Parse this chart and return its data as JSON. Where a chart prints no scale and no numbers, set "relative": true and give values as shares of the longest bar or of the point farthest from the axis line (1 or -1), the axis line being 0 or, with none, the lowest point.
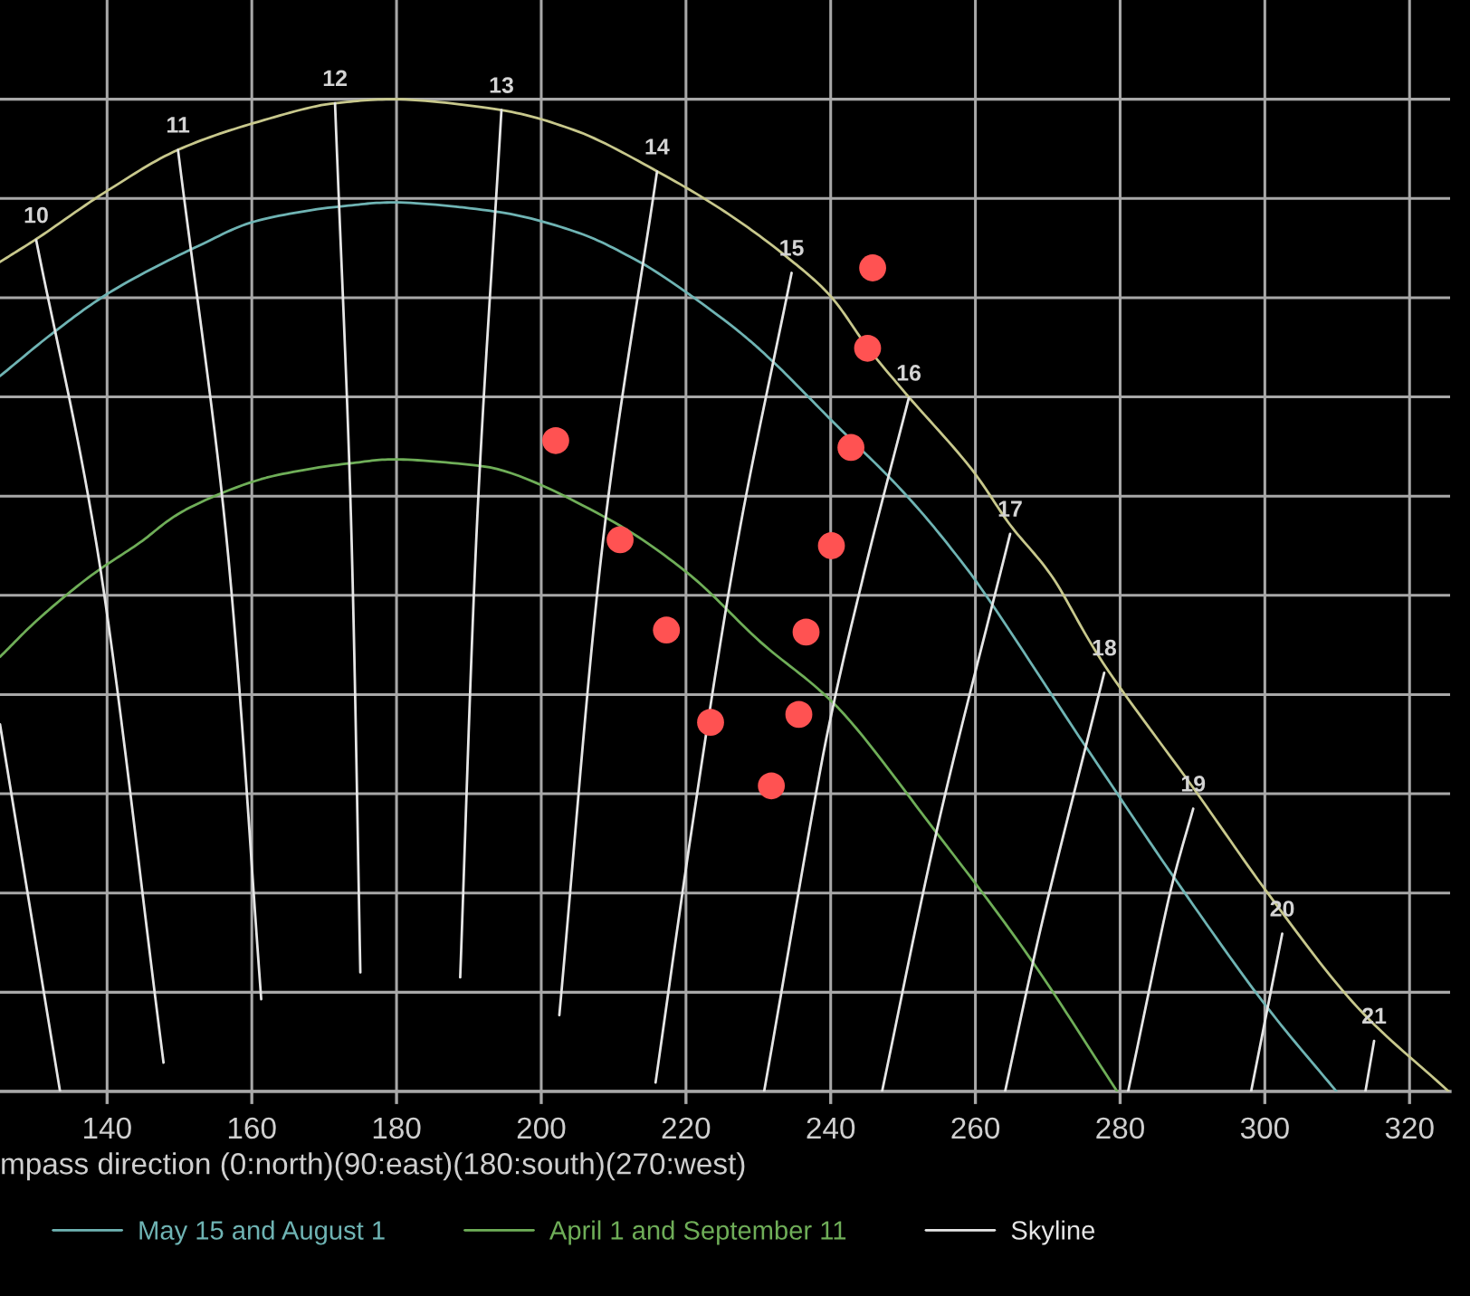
{
  "chart_data": {
    "type": "line",
    "relative": true,
    "xlabel": "mpass direction (0:north)(90:east)(180:south)(270:west)",
    "xlim": [
      125.2,
      325.6
    ],
    "xticks": [
      140,
      160,
      180,
      200,
      220,
      240,
      260,
      280,
      300,
      320
    ],
    "grid": true,
    "legend": "bottom",
    "marker": "none",
    "line_style": "solid",
    "series": [
      {
        "color": "#c8c88c",
        "x": [
          125.2,
          130.2,
          140.3,
          149.8,
          160.3,
          171.5,
          179.8,
          194.5,
          204.5,
          216.1,
          225.3,
          233.6,
          239.8,
          245.3,
          250.3,
          259.6,
          264.8,
          270.3,
          277.1,
          290.4,
          301.1,
          312.9,
          325.4
        ],
        "values": [
          0.836,
          0.859,
          0.909,
          0.949,
          0.976,
          0.996,
          1.0,
          0.989,
          0.969,
          0.927,
          0.887,
          0.843,
          0.803,
          0.748,
          0.704,
          0.626,
          0.571,
          0.522,
          0.438,
          0.303,
          0.193,
          0.084,
          0
        ]
      },
      {
        "name": "May 15 and August 1",
        "color": "#6fb4b4",
        "x": [
          125.2,
          132.8,
          140.3,
          152.0,
          161.0,
          172.3,
          179.8,
          193.5,
          204.5,
          213.6,
          227.8,
          232.1,
          240.3,
          250.3,
          258.6,
          275.3,
          287.8,
          300.4,
          309.9
        ],
        "values": [
          0.721,
          0.766,
          0.805,
          0.85,
          0.878,
          0.892,
          0.896,
          0.887,
          0.867,
          0.836,
          0.763,
          0.735,
          0.675,
          0.602,
          0.529,
          0.347,
          0.212,
          0.084,
          0
        ]
      },
      {
        "name": "April 1 and September 11",
        "color": "#6fae58",
        "x": [
          125.2,
          130.2,
          137.8,
          144.5,
          150.3,
          162.8,
          173.5,
          179.8,
          192.0,
          208.5,
          220.3,
          230.3,
          240.3,
          254.6,
          267.1,
          279.6
        ],
        "values": [
          0.438,
          0.474,
          0.52,
          0.553,
          0.584,
          0.62,
          0.633,
          0.637,
          0.63,
          0.58,
          0.522,
          0.453,
          0.392,
          0.261,
          0.139,
          0
        ]
      },
      {
        "name": "Skyline",
        "color": "#e6e6e6"
      },
      {
        "color": "#e6e6e6",
        "x": [
          125.2,
          133.5
        ],
        "values": [
          0.37,
          0
        ]
      },
      {
        "color": "#e6e6e6",
        "x": [
          130.2,
          138.5,
          147.8
        ],
        "values": [
          0.858,
          0.553,
          0.029
        ]
      },
      {
        "color": "#e6e6e6",
        "x": [
          149.8,
          156.8,
          161.3
        ],
        "values": [
          0.949,
          0.535,
          0.093
        ]
      },
      {
        "color": "#e6e6e6",
        "x": [
          171.5,
          173.8,
          175.0
        ],
        "values": [
          0.996,
          0.553,
          0.12
        ]
      },
      {
        "color": "#e6e6e6",
        "x": [
          194.5,
          191.0,
          188.8
        ],
        "values": [
          0.989,
          0.553,
          0.115
        ]
      },
      {
        "color": "#e6e6e6",
        "x": [
          216.0,
          208.5,
          202.5
        ],
        "values": [
          0.927,
          0.553,
          0.077
        ]
      },
      {
        "color": "#e6e6e6",
        "x": [
          234.6,
          227.1,
          221.1,
          215.8
        ],
        "values": [
          0.825,
          0.553,
          0.279,
          0.009
        ]
      },
      {
        "color": "#e6e6e6",
        "x": [
          250.8,
          244.6,
          239.8,
          230.8
        ],
        "values": [
          0.699,
          0.522,
          0.37,
          0
        ]
      },
      {
        "color": "#e6e6e6",
        "x": [
          264.8,
          254.6,
          247.1
        ],
        "values": [
          0.562,
          0.261,
          0
        ]
      },
      {
        "color": "#e6e6e6",
        "x": [
          277.8,
          268.6,
          264.1
        ],
        "values": [
          0.422,
          0.151,
          0
        ]
      },
      {
        "color": "#e6e6e6",
        "x": [
          290.1,
          287.3,
          281.1
        ],
        "values": [
          0.285,
          0.212,
          0
        ]
      },
      {
        "color": "#e6e6e6",
        "x": [
          302.4,
          298.1
        ],
        "values": [
          0.159,
          0
        ]
      },
      {
        "color": "#e6e6e6",
        "x": [
          315.1,
          313.9
        ],
        "values": [
          0.051,
          0
        ]
      },
      {
        "type": "scatter",
        "marker": "circle",
        "color": "#ff5252",
        "x": [
          245.8,
          245.1,
          242.8,
          240.1,
          236.6,
          235.6,
          231.8,
          202.0,
          210.9,
          217.3,
          223.4
        ],
        "values": [
          0.83,
          0.749,
          0.649,
          0.55,
          0.463,
          0.38,
          0.308,
          0.656,
          0.556,
          0.465,
          0.372
        ]
      }
    ],
    "annotations": [
      {
        "text": "10",
        "x": 130.2,
        "y": 0.858
      },
      {
        "text": "11",
        "x": 149.8,
        "y": 0.949
      },
      {
        "text": "12",
        "x": 171.5,
        "y": 0.996
      },
      {
        "text": "13",
        "x": 194.5,
        "y": 0.989
      },
      {
        "text": "14",
        "x": 216.0,
        "y": 0.927
      },
      {
        "text": "15",
        "x": 234.6,
        "y": 0.825
      },
      {
        "text": "16",
        "x": 250.8,
        "y": 0.699
      },
      {
        "text": "17",
        "x": 264.8,
        "y": 0.562
      },
      {
        "text": "18",
        "x": 277.8,
        "y": 0.422
      },
      {
        "text": "19",
        "x": 290.1,
        "y": 0.285
      },
      {
        "text": "20",
        "x": 302.4,
        "y": 0.159
      },
      {
        "text": "21",
        "x": 315.1,
        "y": 0.051
      }
    ]
  }
}
